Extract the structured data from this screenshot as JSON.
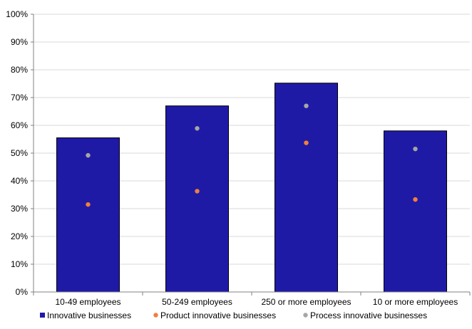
{
  "chart_data": {
    "type": "bar",
    "categories": [
      "10-49 employees",
      "50-249 employees",
      "250 or more employees",
      "10 or more employees"
    ],
    "series": [
      {
        "name": "Innovative businesses",
        "kind": "bar",
        "color": "#1f1aa6",
        "values": [
          55.5,
          67,
          75.2,
          58
        ]
      },
      {
        "name": "Product innovative businesses",
        "kind": "dot",
        "color": "#f07f3c",
        "values": [
          31.5,
          36.3,
          53.7,
          33.3
        ]
      },
      {
        "name": "Process innovative businesses",
        "kind": "dot",
        "color": "#a6a6a6",
        "values": [
          49.2,
          58.9,
          67,
          51.5
        ]
      }
    ],
    "yticks": [
      "0%",
      "10%",
      "20%",
      "30%",
      "40%",
      "50%",
      "60%",
      "70%",
      "80%",
      "90%",
      "100%"
    ],
    "ylim": [
      0,
      100
    ],
    "grid": true,
    "legend_position": "bottom"
  }
}
